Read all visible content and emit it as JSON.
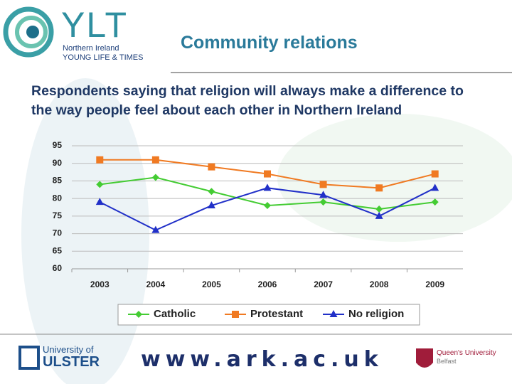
{
  "header": {
    "logo": "YLT",
    "logo_line1": "Northern Ireland",
    "logo_line2": "YOUNG LIFE & TIMES"
  },
  "footer": {
    "ulster_line1": "University of",
    "ulster_line2": "ULSTER",
    "website": "www.ark.ac.uk",
    "queens_line1": "Queen's University",
    "queens_line2": "Belfast"
  },
  "chart_data": {
    "type": "line",
    "title": "Community relations",
    "subtitle": "Respondents saying that religion will always make a difference to the way people feel about each other in Northern Ireland",
    "categories": [
      "2003",
      "2004",
      "2005",
      "2006",
      "2007",
      "2008",
      "2009"
    ],
    "series": [
      {
        "name": "Catholic",
        "color": "#44cc33",
        "marker": "diamond",
        "values": [
          84,
          86,
          82,
          78,
          79,
          77,
          79
        ]
      },
      {
        "name": "Protestant",
        "color": "#f07a22",
        "marker": "square",
        "values": [
          91,
          91,
          89,
          87,
          84,
          83,
          87
        ]
      },
      {
        "name": "No religion",
        "color": "#2130c8",
        "marker": "triangle",
        "values": [
          79,
          71,
          78,
          83,
          81,
          75,
          83
        ]
      }
    ],
    "ylim": [
      60,
      95
    ],
    "yticks": [
      60,
      65,
      70,
      75,
      80,
      85,
      90,
      95
    ],
    "grid": true,
    "legend": "bottom"
  }
}
